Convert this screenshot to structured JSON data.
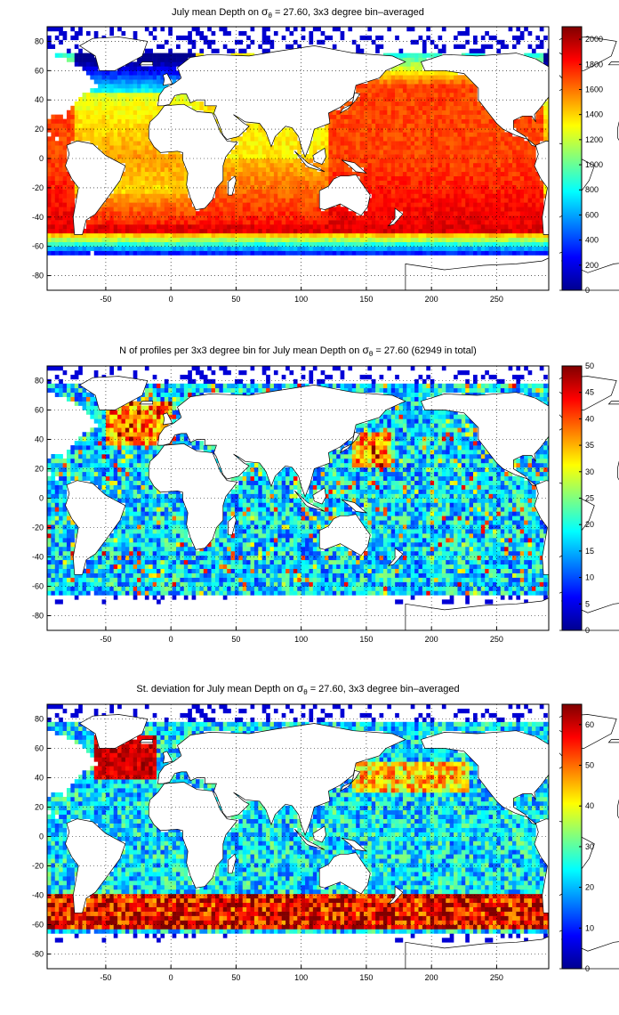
{
  "colormap": [
    "#00008f",
    "#0000ff",
    "#00ffff",
    "#ffff00",
    "#ff0000",
    "#800000"
  ],
  "land_color": "#ffffff",
  "chart_data": [
    {
      "type": "heatmap",
      "title": {
        "pre": "July mean Depth on ",
        "sym": "σ",
        "sub": "θ",
        "post": " = 27.60, 3x3 degree bin–averaged"
      },
      "xlim": [
        -95,
        290
      ],
      "ylim": [
        -90,
        90
      ],
      "xticks": [
        -50,
        0,
        50,
        100,
        150,
        200,
        250
      ],
      "yticks": [
        -80,
        -60,
        -40,
        -20,
        0,
        20,
        40,
        60,
        80
      ],
      "xticklabels": [
        "-50",
        "0",
        "50",
        "100",
        "150",
        "200",
        "250"
      ],
      "yticklabels": [
        "-80",
        "-60",
        "-40",
        "-20",
        "0",
        "20",
        "40",
        "60",
        "80"
      ],
      "grid": true,
      "bin_size_deg": 3,
      "field": "depth",
      "clim": [
        0,
        2100
      ],
      "colorbar_ticks": [
        0,
        200,
        400,
        600,
        800,
        1000,
        1200,
        1400,
        1600,
        1800,
        2000
      ],
      "colorbar_labels": [
        "0",
        "200",
        "400",
        "600",
        "800",
        "1000",
        "1200",
        "1400",
        "1600",
        "1800",
        "2000"
      ]
    },
    {
      "type": "heatmap",
      "title": {
        "pre": "N of profiles per 3x3 degree bin for July mean Depth on ",
        "sym": "σ",
        "sub": "θ",
        "post": " = 27.60 (62949 in total)"
      },
      "xlim": [
        -95,
        290
      ],
      "ylim": [
        -90,
        90
      ],
      "xticks": [
        -50,
        0,
        50,
        100,
        150,
        200,
        250
      ],
      "yticks": [
        -80,
        -60,
        -40,
        -20,
        0,
        20,
        40,
        60,
        80
      ],
      "xticklabels": [
        "-50",
        "0",
        "50",
        "100",
        "150",
        "200",
        "250"
      ],
      "yticklabels": [
        "-80",
        "-60",
        "-40",
        "-20",
        "0",
        "20",
        "40",
        "60",
        "80"
      ],
      "grid": true,
      "bin_size_deg": 3,
      "field": "count",
      "total_profiles": 62949,
      "clim": [
        0,
        50
      ],
      "colorbar_ticks": [
        0,
        5,
        10,
        15,
        20,
        25,
        30,
        35,
        40,
        45,
        50
      ],
      "colorbar_labels": [
        "0",
        "5",
        "10",
        "15",
        "20",
        "25",
        "30",
        "35",
        "40",
        "45",
        "50"
      ]
    },
    {
      "type": "heatmap",
      "title": {
        "pre": "St. deviation for July mean Depth on ",
        "sym": "σ",
        "sub": "θ",
        "post": " = 27.60, 3x3 degree bin–averaged"
      },
      "xlim": [
        -95,
        290
      ],
      "ylim": [
        -90,
        90
      ],
      "xticks": [
        -50,
        0,
        50,
        100,
        150,
        200,
        250
      ],
      "yticks": [
        -80,
        -60,
        -40,
        -20,
        0,
        20,
        40,
        60,
        80
      ],
      "xticklabels": [
        "-50",
        "0",
        "50",
        "100",
        "150",
        "200",
        "250"
      ],
      "yticklabels": [
        "-80",
        "-60",
        "-40",
        "-20",
        "0",
        "20",
        "40",
        "60",
        "80"
      ],
      "grid": true,
      "bin_size_deg": 3,
      "field": "stdev",
      "clim": [
        0,
        65
      ],
      "colorbar_ticks": [
        0,
        10,
        20,
        30,
        40,
        50,
        60
      ],
      "colorbar_labels": [
        "0",
        "10",
        "20",
        "30",
        "40",
        "50",
        "60"
      ]
    }
  ]
}
